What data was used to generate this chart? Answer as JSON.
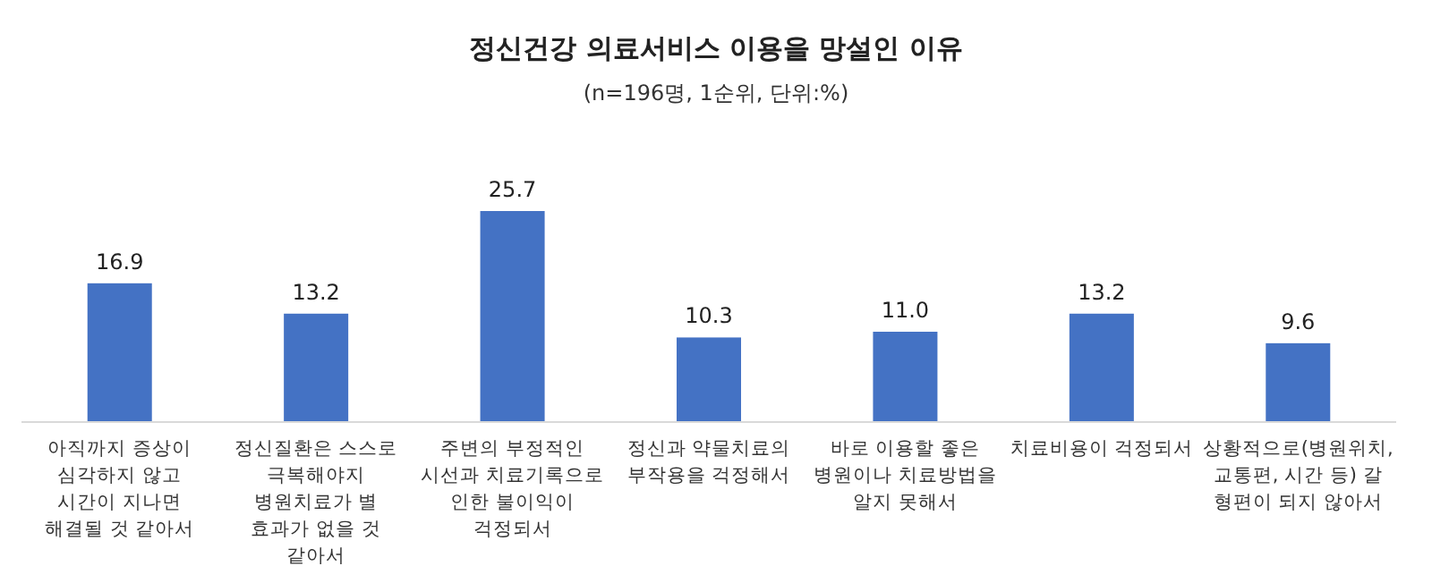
{
  "chart_data": {
    "type": "bar",
    "title": "정신건강 의료서비스 이용을 망설인 이유",
    "subtitle": "(n=196명,  1순위, 단위:%)",
    "categories": [
      "아직까지 증상이 심각하지 않고 시간이 지나면 해결될 것 같아서",
      "정신질환은 스스로 극복해야지 병원치료가 별 효과가 없을 것 같아서",
      "주변의 부정적인 시선과 치료기록으로 인한 불이익이 걱정되서",
      "정신과 약물치료의 부작용을 걱정해서",
      "바로 이용할 좋은 병원이나 치료방법을 알지 못해서",
      "치료비용이 걱정되서",
      "상황적으로(병원위치, 교통편, 시간 등) 갈 형편이 되지 않아서"
    ],
    "values": [
      16.9,
      13.2,
      25.7,
      10.3,
      11.0,
      13.2,
      9.6
    ],
    "value_labels": [
      "16.9",
      "13.2",
      "25.7",
      "10.3",
      "11.0",
      "13.2",
      "9.6"
    ],
    "color": "#4472c4"
  }
}
